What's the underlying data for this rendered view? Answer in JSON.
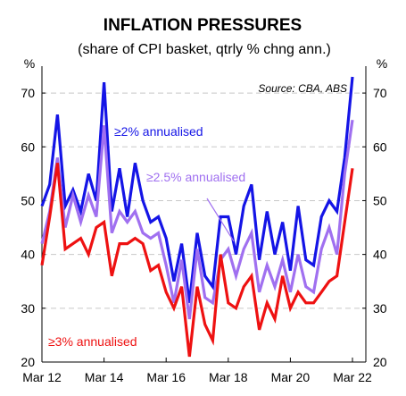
{
  "chart_data": {
    "type": "line",
    "title": "INFLATION PRESSURES",
    "subtitle": "(share of CPI basket, qtrly % chng ann.)",
    "source": "Source: CBA, ABS",
    "y_unit_left": "%",
    "y_unit_right": "%",
    "ylim": [
      20,
      75
    ],
    "y_ticks": [
      "20",
      "30",
      "40",
      "50",
      "60",
      "70"
    ],
    "x_ticks": [
      "Mar 12",
      "Mar 14",
      "Mar 16",
      "Mar 18",
      "Mar 20",
      "Mar 22"
    ],
    "grid": "horizontal-dashed",
    "series": [
      {
        "name": "≥2% annualised",
        "color": "#1414e6",
        "values": [
          49,
          53,
          66,
          49,
          52,
          48,
          55,
          50,
          72,
          48,
          56,
          47,
          57,
          50,
          46,
          47,
          43,
          35,
          42,
          31,
          44,
          36,
          34,
          47,
          47,
          40,
          49,
          53,
          39,
          48,
          40,
          46,
          37,
          49,
          39,
          38,
          47,
          50,
          48,
          58,
          73
        ]
      },
      {
        "name": "≥2.5% annualised",
        "color": "#a070f0",
        "values": [
          42,
          48,
          58,
          45,
          51,
          46,
          51,
          47,
          64,
          44,
          48,
          46,
          48,
          44,
          43,
          44,
          38,
          31,
          39,
          28,
          41,
          32,
          31,
          39,
          41,
          36,
          41,
          44,
          33,
          38,
          34,
          39,
          33,
          40,
          34,
          33,
          41,
          45,
          40,
          55,
          65
        ]
      },
      {
        "name": "≥3% annualised",
        "color": "#ee1111",
        "values": [
          38,
          47,
          57,
          41,
          42,
          43,
          40,
          45,
          46,
          36,
          42,
          42,
          43,
          42,
          37,
          38,
          33,
          30,
          34,
          21,
          34,
          27,
          24,
          40,
          31,
          30,
          34,
          36,
          26,
          31,
          28,
          36,
          30,
          33,
          31,
          31,
          33,
          35,
          36,
          46,
          56
        ]
      }
    ],
    "annotations": [
      {
        "text": "≥2% annualised",
        "color": "#1414e6"
      },
      {
        "text": "≥2.5% annualised",
        "color": "#a070f0"
      },
      {
        "text": "≥3% annualised",
        "color": "#ee1111"
      }
    ]
  }
}
